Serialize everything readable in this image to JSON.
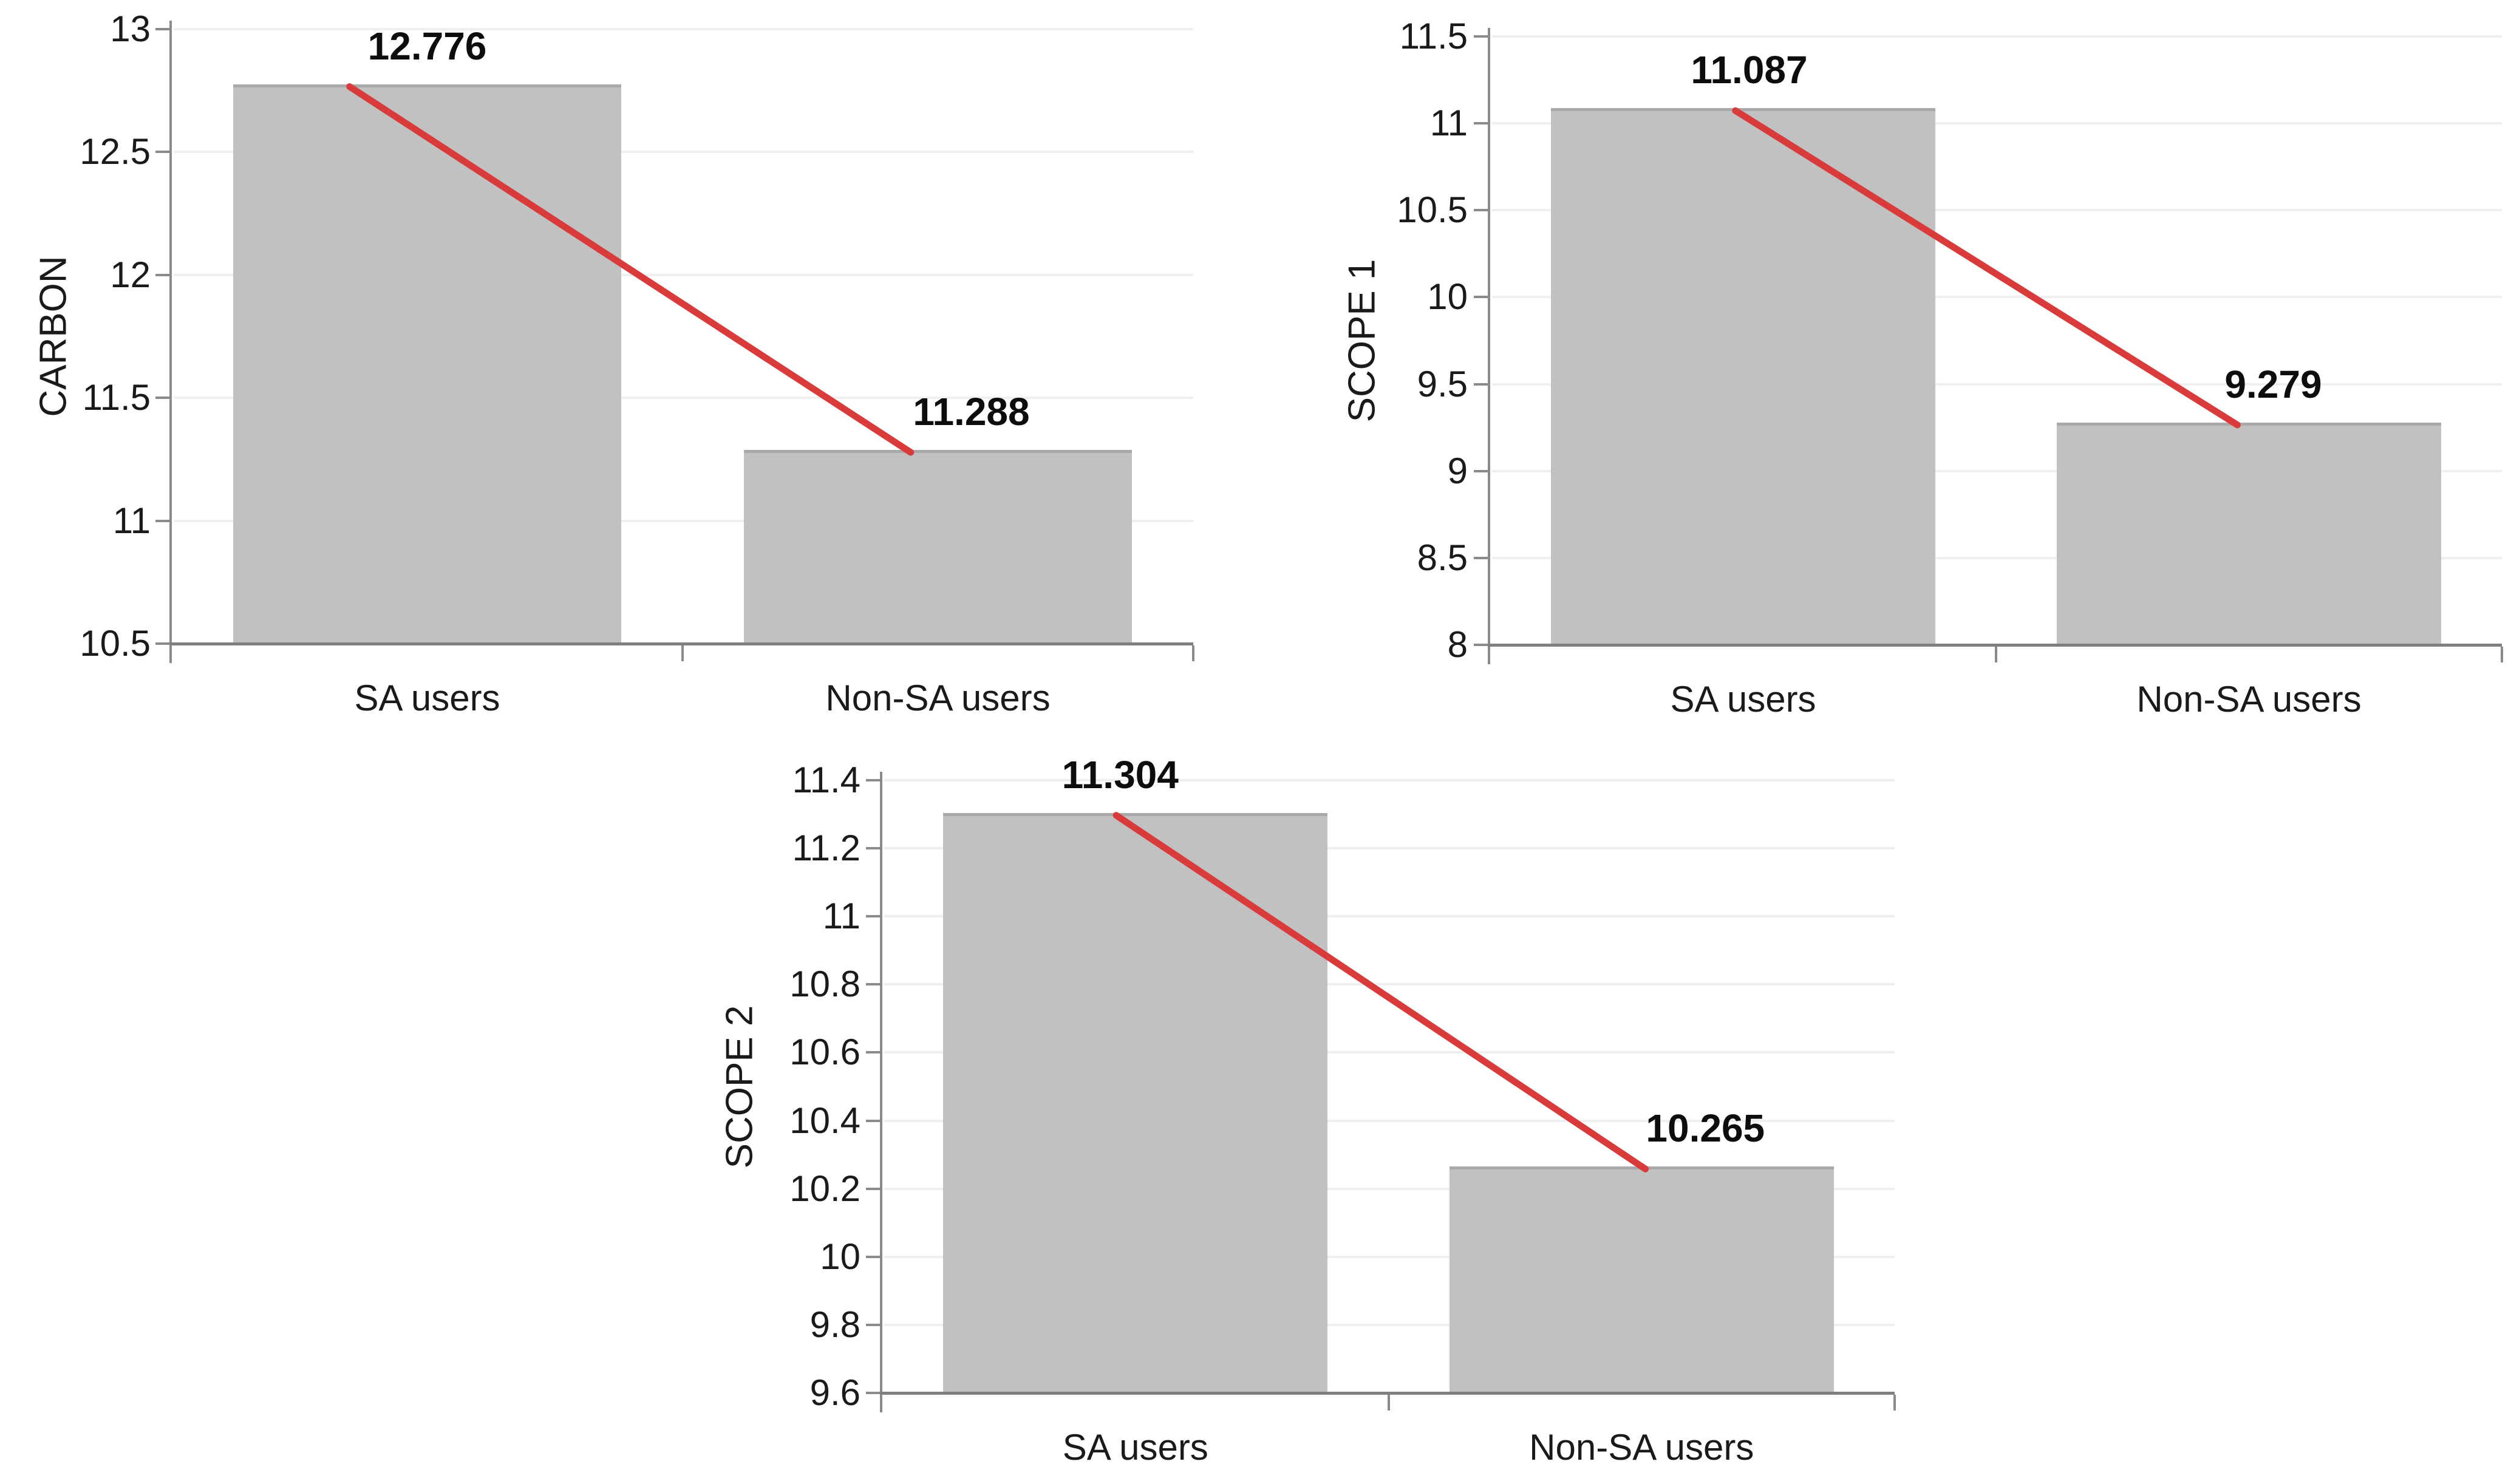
{
  "page": {
    "background": "#ffffff",
    "description": "Three bar charts comparing SA users vs Non-SA users"
  },
  "colors": {
    "bar_fill": "#c1c1c1",
    "bar_top_border": "#a9a9a9",
    "trend_line": "#d93b3b",
    "gridline": "#efefef",
    "axis_line": "#8a8a8a",
    "baseline": "#7f7f7f",
    "tick_text": "#1a1a1a",
    "data_label_text": "#0d0d0d"
  },
  "chart_data": [
    {
      "id": "carbon",
      "type": "bar",
      "title": "",
      "xlabel": "",
      "ylabel": "CARBON",
      "categories": [
        "SA users",
        "Non-SA users"
      ],
      "values": [
        12.776,
        11.288
      ],
      "data_labels": [
        "12.776",
        "11.288"
      ],
      "ylim": [
        10.5,
        13
      ],
      "ytick_step": 0.5,
      "ytick_labels": [
        "13",
        "12.5",
        "12",
        "11.5",
        "11",
        "10.5"
      ],
      "grid": true,
      "legend": false,
      "trend_line": true
    },
    {
      "id": "scope1",
      "type": "bar",
      "title": "",
      "xlabel": "",
      "ylabel": "SCOPE 1",
      "categories": [
        "SA users",
        "Non-SA users"
      ],
      "values": [
        11.087,
        9.279
      ],
      "data_labels": [
        "11.087",
        "9.279"
      ],
      "ylim": [
        8,
        11.5
      ],
      "ytick_step": 0.5,
      "ytick_labels": [
        "11.5",
        "11",
        "10.5",
        "10",
        "9.5",
        "9",
        "8.5",
        "8"
      ],
      "grid": true,
      "legend": false,
      "trend_line": true
    },
    {
      "id": "scope2",
      "type": "bar",
      "title": "",
      "xlabel": "",
      "ylabel": "SCOPE 2",
      "categories": [
        "SA users",
        "Non-SA users"
      ],
      "values": [
        11.304,
        10.265
      ],
      "data_labels": [
        "11.304",
        "10.265"
      ],
      "ylim": [
        9.6,
        11.4
      ],
      "ytick_step": 0.2,
      "ytick_labels": [
        "11.4",
        "11.2",
        "11",
        "10.8",
        "10.6",
        "10.4",
        "10.2",
        "10",
        "9.8",
        "9.6"
      ],
      "grid": true,
      "legend": false,
      "trend_line": true
    }
  ]
}
